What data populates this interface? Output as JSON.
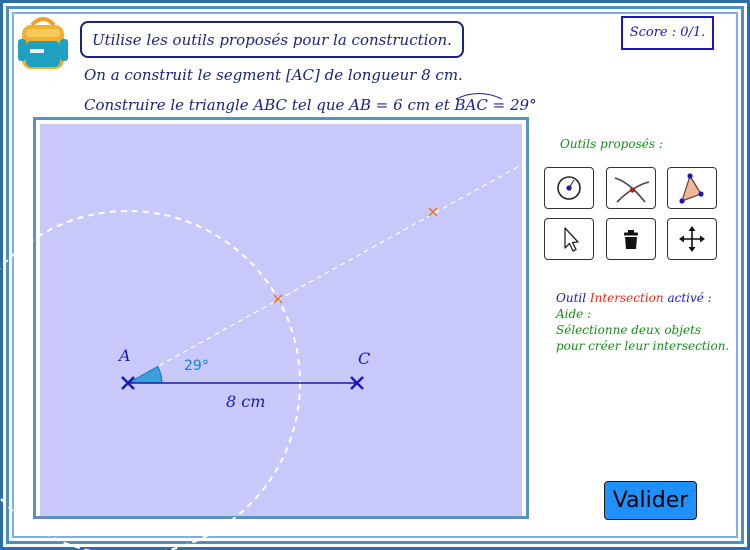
{
  "header": {
    "instruction": "Utilise les outils proposés pour la construction.",
    "score": "Score : 0/1."
  },
  "statement": {
    "line1": "On a construit le segment [AC] de longueur 8 cm.",
    "line2_prefix": "Construire le triangle ABC tel que AB = 6 cm et ",
    "angle_name": "BAC",
    "line2_suffix": " = 29°"
  },
  "figure": {
    "point_a": "A",
    "point_c": "C",
    "angle_label": "29°",
    "segment_label": "8 cm",
    "angle_deg": 29,
    "segment_cm": 8,
    "circle_radius_cm": 6
  },
  "tools": {
    "title": "Outils proposés :",
    "items": [
      {
        "name": "circle-center-point-tool",
        "icon": "circle-with-center-icon"
      },
      {
        "name": "intersection-tool",
        "icon": "intersection-icon"
      },
      {
        "name": "polygon-tool",
        "icon": "triangle-polygon-icon"
      },
      {
        "name": "move-pointer-tool",
        "icon": "cursor-arrow-icon"
      },
      {
        "name": "delete-tool",
        "icon": "trash-icon"
      },
      {
        "name": "move-view-tool",
        "icon": "move-arrows-icon"
      }
    ]
  },
  "status": {
    "tool_prefix": "Outil ",
    "tool_name": "Intersection",
    "tool_suffix": " activé :",
    "help_label": "Aide :",
    "help_line1": "Sélectionne deux objets",
    "help_line2": "pour créer leur intersection."
  },
  "colors": {
    "canvas_bg": "#c8c8fa",
    "primary_blue": "#1a1ab0",
    "angle_fill": "#3aa0e0",
    "intersection_red": "#e03020",
    "help_green": "#1a8a1a",
    "button_blue": "#1e90ff",
    "marker_orange": "#f07020"
  },
  "buttons": {
    "validate": "Valider"
  }
}
